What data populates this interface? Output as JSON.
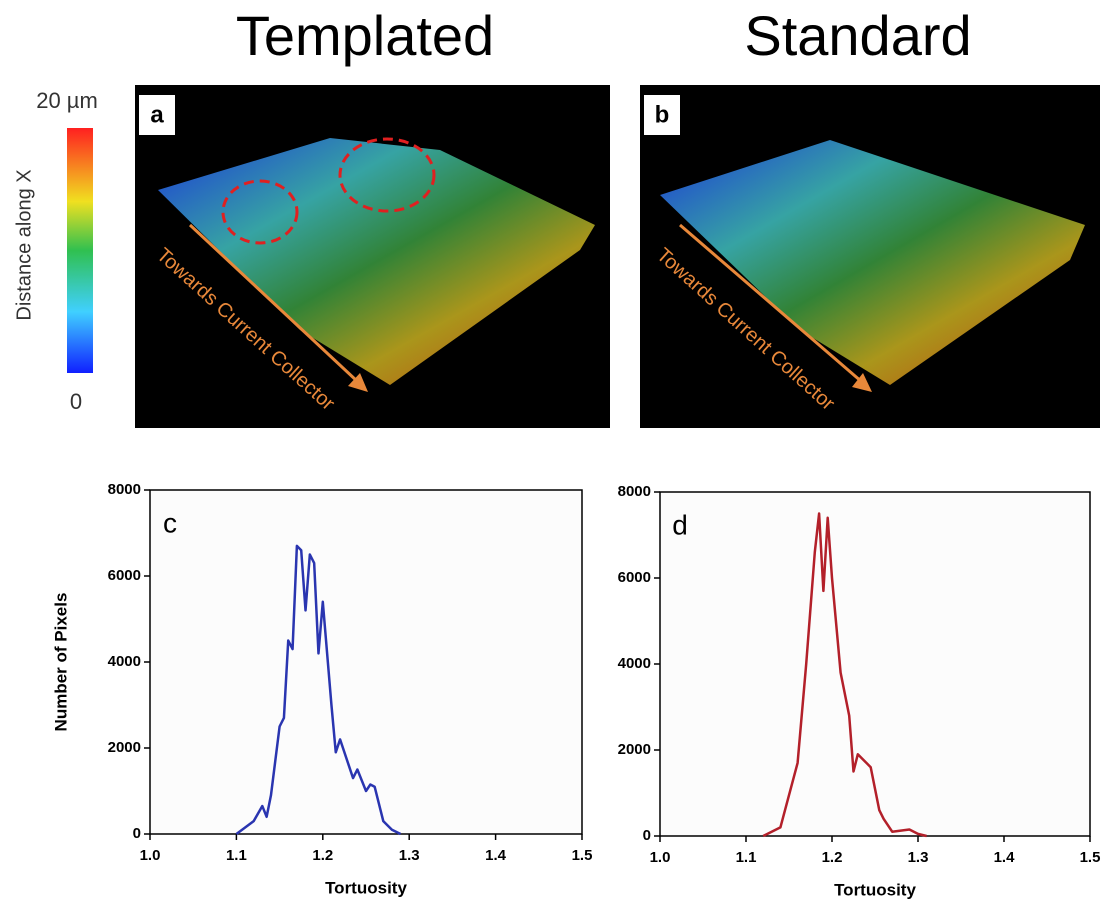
{
  "headers": [
    "Templated",
    "Standard"
  ],
  "colorbar": {
    "label": "Distance along X",
    "max_label": "20 µm",
    "min_label": "0"
  },
  "images": [
    {
      "label": "a",
      "arrow_text": "Towards Current Collector"
    },
    {
      "label": "b",
      "arrow_text": "Towards Current Collector"
    }
  ],
  "chart_data": [
    {
      "type": "line",
      "panel_label": "c",
      "xlabel": "Tortuosity",
      "ylabel": "Number of Pixels",
      "color": "#2a35b0",
      "x": [
        1.1,
        1.12,
        1.13,
        1.135,
        1.14,
        1.15,
        1.155,
        1.16,
        1.165,
        1.17,
        1.175,
        1.18,
        1.185,
        1.19,
        1.195,
        1.2,
        1.21,
        1.215,
        1.22,
        1.23,
        1.235,
        1.24,
        1.25,
        1.255,
        1.26,
        1.27,
        1.28,
        1.29
      ],
      "values": [
        0,
        300,
        650,
        400,
        900,
        2500,
        2700,
        4500,
        4300,
        6700,
        6600,
        5200,
        6500,
        6300,
        4200,
        5400,
        3000,
        1900,
        2200,
        1600,
        1300,
        1500,
        1000,
        1150,
        1100,
        300,
        100,
        0
      ],
      "xlim": [
        1.0,
        1.5
      ],
      "ylim": [
        0,
        8000
      ],
      "xticks": [
        {
          "value": 1.0,
          "label": "1.0"
        },
        1.1,
        1.2,
        1.3,
        1.4,
        1.5
      ],
      "yticks": [
        0,
        2000,
        4000,
        6000,
        8000
      ]
    },
    {
      "type": "line",
      "panel_label": "d",
      "xlabel": "Tortuosity",
      "color": "#b3202a",
      "x": [
        1.12,
        1.14,
        1.16,
        1.17,
        1.18,
        1.185,
        1.19,
        1.195,
        1.2,
        1.21,
        1.22,
        1.225,
        1.23,
        1.24,
        1.245,
        1.255,
        1.26,
        1.27,
        1.29,
        1.3,
        1.31
      ],
      "values": [
        0,
        200,
        1700,
        4000,
        6600,
        7500,
        5700,
        7400,
        6000,
        3800,
        2800,
        1500,
        1900,
        1700,
        1600,
        600,
        400,
        100,
        150,
        50,
        0
      ],
      "xlim": [
        1.0,
        1.5
      ],
      "ylim": [
        0,
        8000
      ],
      "xticks": [
        {
          "value": 1.0,
          "label": "1.0"
        },
        1.1,
        1.2,
        1.3,
        1.4,
        1.5
      ],
      "yticks": [
        0,
        2000,
        4000,
        6000,
        8000
      ]
    }
  ]
}
